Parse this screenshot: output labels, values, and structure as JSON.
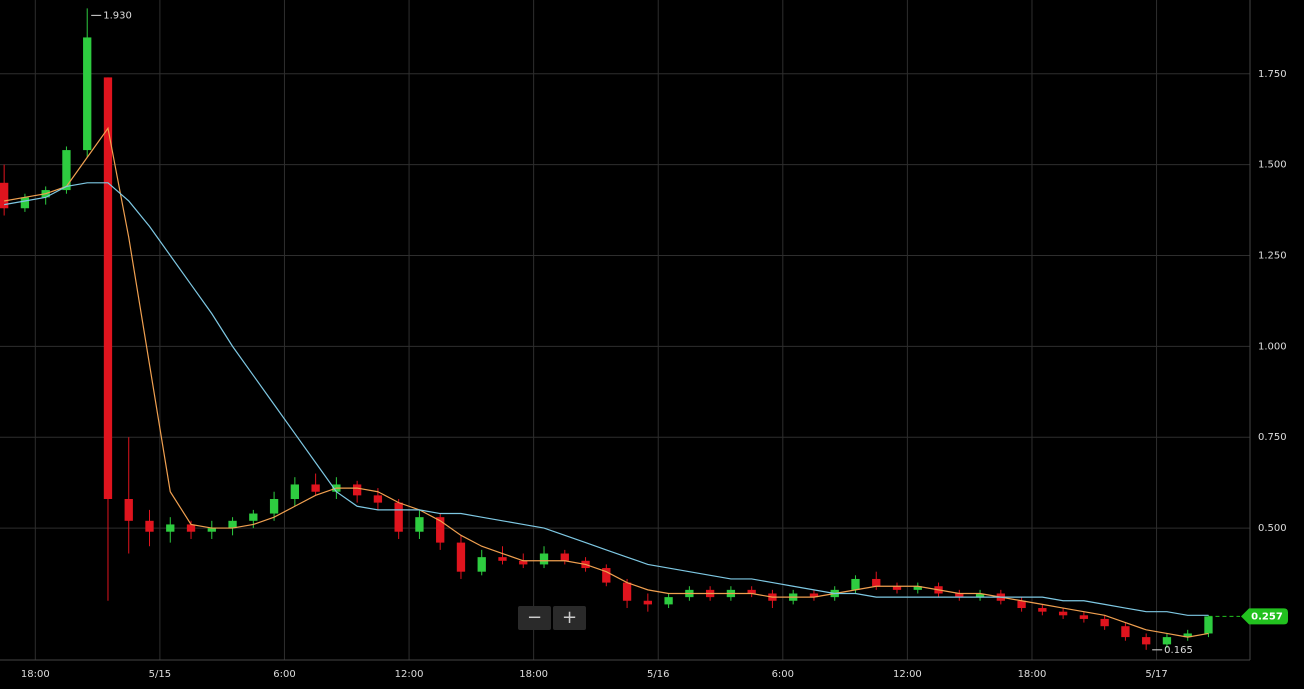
{
  "chart_data": {
    "type": "candlestick",
    "x": [
      -1.5,
      -0.5,
      0.5,
      1.5,
      2.5,
      3.5,
      4.5,
      5.5,
      6.5,
      7.5,
      8.5,
      9.5,
      10.5,
      11.5,
      12.5,
      13.5,
      14.5,
      15.5,
      16.5,
      17.5,
      18.5,
      19.5,
      20.5,
      21.5,
      22.5,
      23.5,
      24.5,
      25.5,
      26.5,
      27.5,
      28.5,
      29.5,
      30.5,
      31.5,
      32.5,
      33.5,
      34.5,
      35.5,
      36.5,
      37.5,
      38.5,
      39.5,
      40.5,
      41.5,
      42.5,
      43.5,
      44.5,
      45.5,
      46.5,
      47.5,
      48.5,
      49.5,
      50.5,
      51.5,
      52.5,
      53.5,
      54.5,
      55.5,
      56.5
    ],
    "open": [
      1.45,
      1.38,
      1.41,
      1.43,
      1.54,
      1.74,
      0.58,
      0.52,
      0.49,
      0.51,
      0.49,
      0.5,
      0.52,
      0.54,
      0.58,
      0.62,
      0.6,
      0.62,
      0.59,
      0.57,
      0.49,
      0.53,
      0.46,
      0.38,
      0.42,
      0.41,
      0.4,
      0.43,
      0.41,
      0.39,
      0.35,
      0.3,
      0.29,
      0.31,
      0.33,
      0.31,
      0.33,
      0.32,
      0.3,
      0.32,
      0.31,
      0.33,
      0.36,
      0.34,
      0.33,
      0.34,
      0.32,
      0.31,
      0.32,
      0.3,
      0.28,
      0.27,
      0.26,
      0.25,
      0.23,
      0.2,
      0.18,
      0.2,
      0.21
    ],
    "high": [
      1.5,
      1.42,
      1.44,
      1.55,
      1.93,
      1.74,
      0.75,
      0.55,
      0.53,
      0.52,
      0.52,
      0.53,
      0.55,
      0.6,
      0.64,
      0.65,
      0.64,
      0.63,
      0.61,
      0.58,
      0.55,
      0.54,
      0.48,
      0.44,
      0.45,
      0.43,
      0.45,
      0.44,
      0.42,
      0.4,
      0.36,
      0.32,
      0.32,
      0.34,
      0.34,
      0.34,
      0.34,
      0.33,
      0.33,
      0.33,
      0.34,
      0.37,
      0.38,
      0.35,
      0.35,
      0.35,
      0.33,
      0.33,
      0.33,
      0.31,
      0.29,
      0.28,
      0.27,
      0.26,
      0.24,
      0.21,
      0.21,
      0.22,
      0.26
    ],
    "low": [
      1.36,
      1.37,
      1.39,
      1.42,
      1.52,
      0.3,
      0.43,
      0.45,
      0.46,
      0.47,
      0.47,
      0.48,
      0.5,
      0.52,
      0.56,
      0.59,
      0.58,
      0.57,
      0.55,
      0.47,
      0.47,
      0.44,
      0.36,
      0.37,
      0.4,
      0.39,
      0.39,
      0.4,
      0.38,
      0.34,
      0.28,
      0.27,
      0.28,
      0.3,
      0.3,
      0.3,
      0.31,
      0.28,
      0.29,
      0.3,
      0.3,
      0.32,
      0.33,
      0.32,
      0.32,
      0.31,
      0.3,
      0.3,
      0.29,
      0.27,
      0.26,
      0.25,
      0.24,
      0.22,
      0.19,
      0.165,
      0.17,
      0.19,
      0.2
    ],
    "close": [
      1.38,
      1.41,
      1.43,
      1.54,
      1.85,
      0.58,
      0.52,
      0.49,
      0.51,
      0.49,
      0.5,
      0.52,
      0.54,
      0.58,
      0.62,
      0.6,
      0.62,
      0.59,
      0.57,
      0.49,
      0.53,
      0.46,
      0.38,
      0.42,
      0.41,
      0.4,
      0.43,
      0.41,
      0.39,
      0.35,
      0.3,
      0.29,
      0.31,
      0.33,
      0.31,
      0.33,
      0.32,
      0.3,
      0.32,
      0.31,
      0.33,
      0.36,
      0.34,
      0.33,
      0.34,
      0.32,
      0.31,
      0.32,
      0.3,
      0.28,
      0.27,
      0.26,
      0.25,
      0.23,
      0.2,
      0.18,
      0.2,
      0.21,
      0.257
    ],
    "up_color": "#2ecc40",
    "down_color": "#e0141e",
    "overlays": [
      {
        "color": "#f0a050",
        "values": [
          1.4,
          1.41,
          1.42,
          1.44,
          1.52,
          1.6,
          1.3,
          0.95,
          0.6,
          0.51,
          0.5,
          0.5,
          0.51,
          0.53,
          0.56,
          0.59,
          0.61,
          0.61,
          0.6,
          0.57,
          0.55,
          0.52,
          0.48,
          0.45,
          0.43,
          0.41,
          0.41,
          0.41,
          0.4,
          0.38,
          0.35,
          0.33,
          0.32,
          0.32,
          0.32,
          0.32,
          0.32,
          0.31,
          0.31,
          0.31,
          0.32,
          0.33,
          0.34,
          0.34,
          0.34,
          0.33,
          0.32,
          0.32,
          0.31,
          0.3,
          0.29,
          0.28,
          0.27,
          0.26,
          0.24,
          0.22,
          0.21,
          0.2,
          0.21
        ]
      },
      {
        "color": "#7ec8e3",
        "values": [
          1.39,
          1.4,
          1.41,
          1.44,
          1.45,
          1.45,
          1.4,
          1.33,
          1.25,
          1.17,
          1.09,
          1.0,
          0.92,
          0.84,
          0.76,
          0.68,
          0.6,
          0.56,
          0.55,
          0.55,
          0.55,
          0.54,
          0.54,
          0.53,
          0.52,
          0.51,
          0.5,
          0.48,
          0.46,
          0.44,
          0.42,
          0.4,
          0.39,
          0.38,
          0.37,
          0.36,
          0.36,
          0.35,
          0.34,
          0.33,
          0.32,
          0.32,
          0.31,
          0.31,
          0.31,
          0.31,
          0.31,
          0.31,
          0.31,
          0.31,
          0.31,
          0.3,
          0.3,
          0.29,
          0.28,
          0.27,
          0.27,
          0.26,
          0.26
        ]
      }
    ],
    "xlim": [
      -1.7,
      58.5
    ],
    "xticks": [
      {
        "value": 0,
        "label": "18:00"
      },
      {
        "value": 6,
        "label": "5/15"
      },
      {
        "value": 12,
        "label": "6:00"
      },
      {
        "value": 18,
        "label": "12:00"
      },
      {
        "value": 24,
        "label": "18:00"
      },
      {
        "value": 30,
        "label": "5/16"
      },
      {
        "value": 36,
        "label": "6:00"
      },
      {
        "value": 42,
        "label": "12:00"
      },
      {
        "value": 48,
        "label": "18:00"
      },
      {
        "value": 54,
        "label": "5/17"
      }
    ],
    "ylim": [
      0.137,
      1.953
    ],
    "yticks": [
      {
        "value": 0.5,
        "label": "0.500"
      },
      {
        "value": 0.75,
        "label": "0.750"
      },
      {
        "value": 1,
        "label": "1.000"
      },
      {
        "value": 1.25,
        "label": "1.250"
      },
      {
        "value": 1.5,
        "label": "1.500"
      },
      {
        "value": 1.75,
        "label": "1.750"
      }
    ],
    "grid": true,
    "max_label": {
      "value": 1.93,
      "label": "1.930"
    },
    "min_label": {
      "value": 0.165,
      "label": "0.165"
    },
    "last_label": {
      "value": 0.257,
      "label": "0.257",
      "color": "#22c11f"
    },
    "zoom_controls": [
      "−",
      "+"
    ]
  }
}
